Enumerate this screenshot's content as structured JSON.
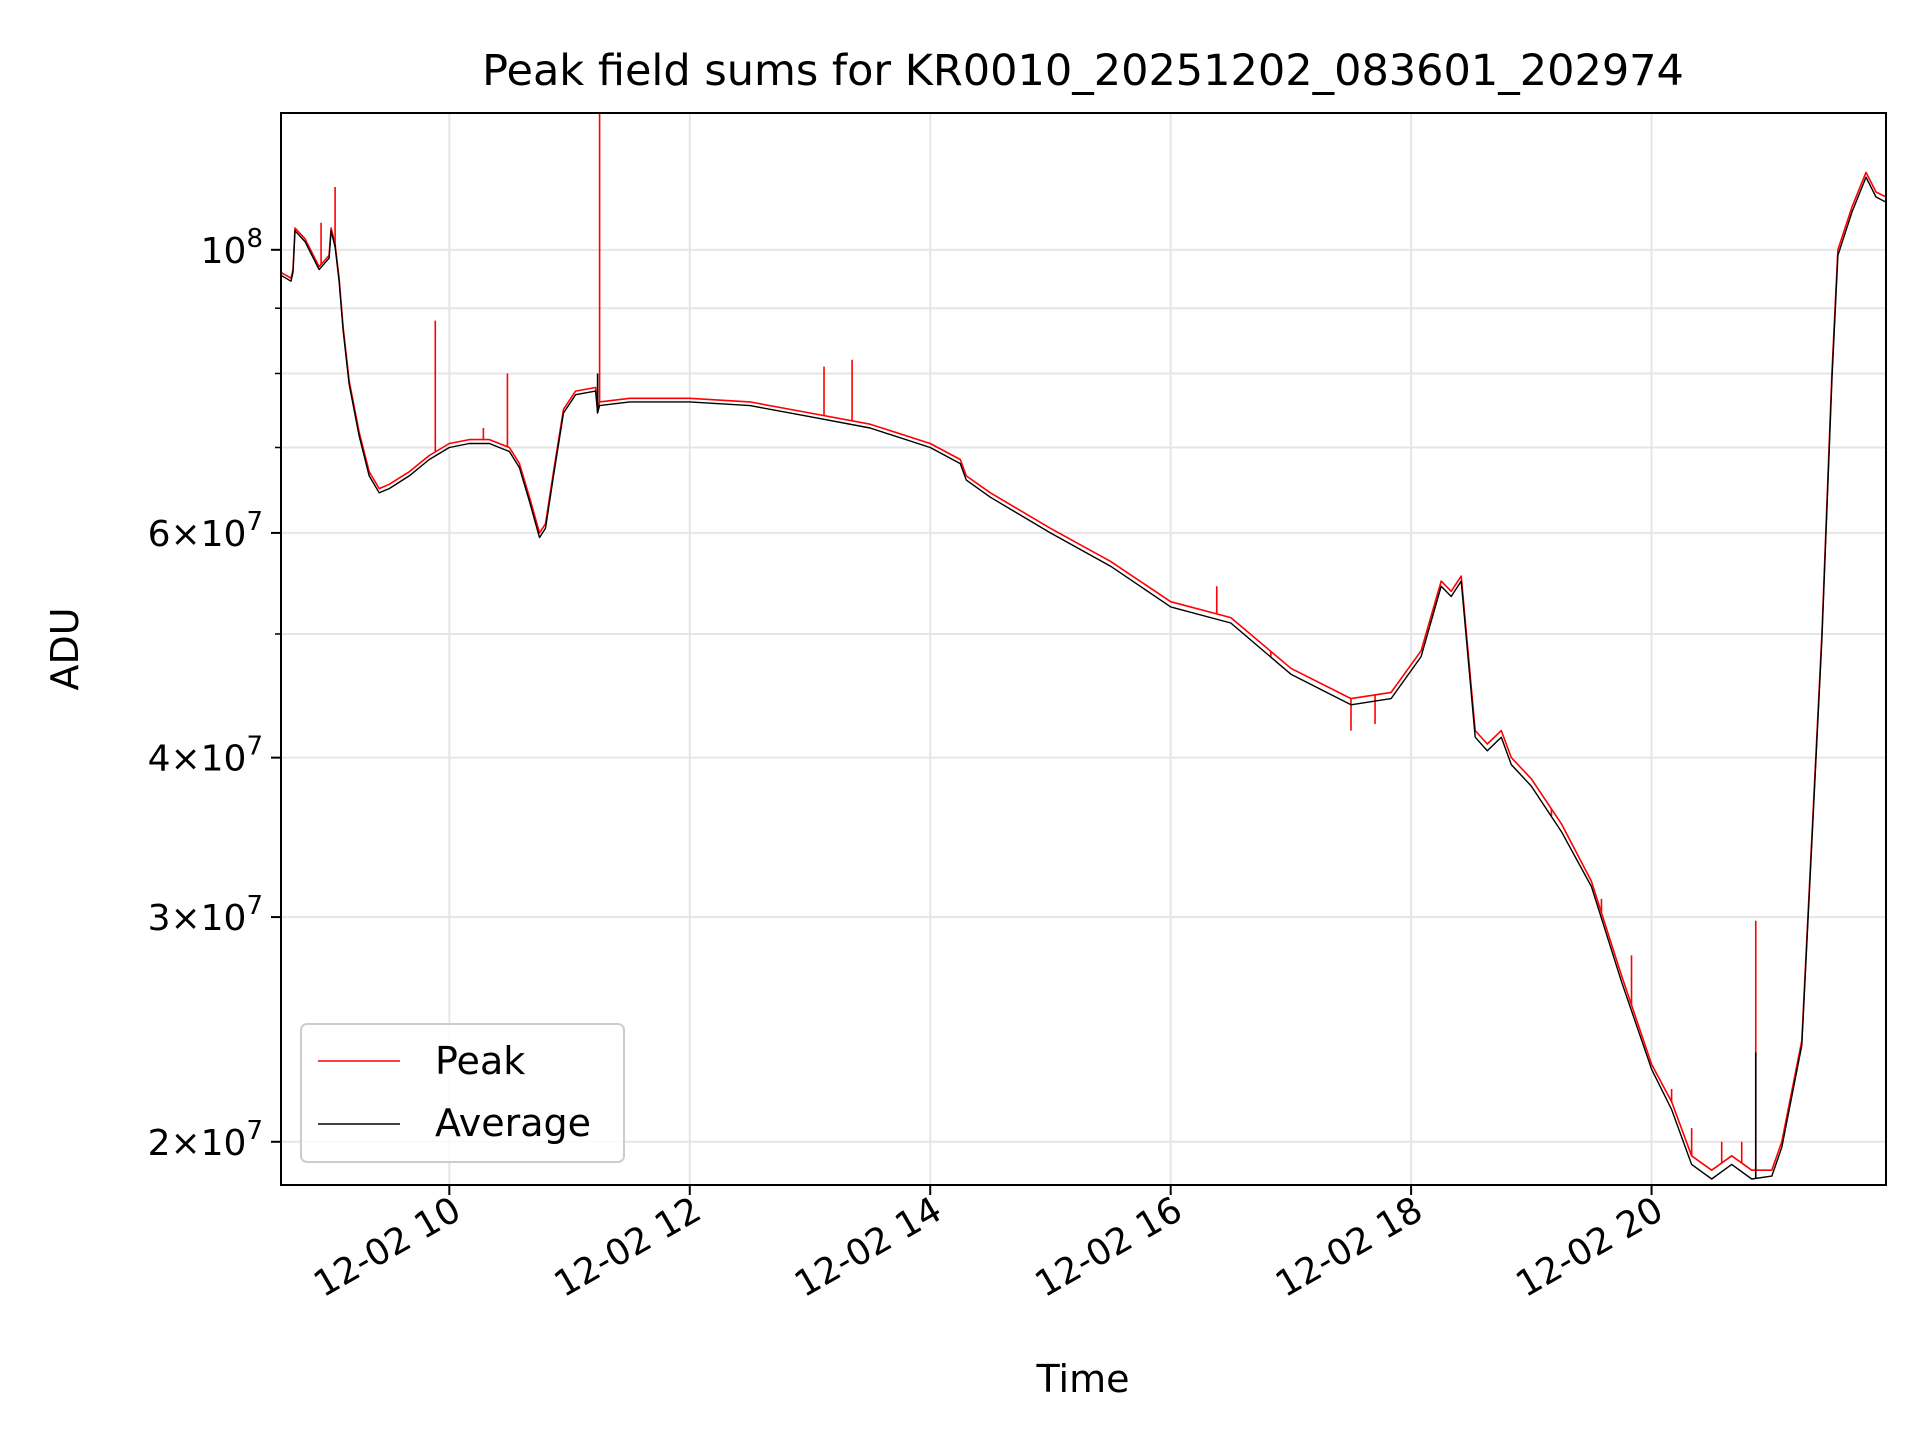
{
  "chart_data": {
    "type": "line",
    "title": "Peak field sums for KR0010_20251202_083601_202974",
    "xlabel": "Time",
    "ylabel": "ADU",
    "yscale": "log",
    "xlim": [
      "2025-12-02 08:36",
      "2025-12-02 21:57"
    ],
    "ylim": [
      18500000,
      128000000
    ],
    "grid": true,
    "legend_position": "lower-left",
    "x_ticks": [
      {
        "x": "2025-12-02 10:00",
        "label": "12-02 10"
      },
      {
        "x": "2025-12-02 12:00",
        "label": "12-02 12"
      },
      {
        "x": "2025-12-02 14:00",
        "label": "12-02 14"
      },
      {
        "x": "2025-12-02 16:00",
        "label": "12-02 16"
      },
      {
        "x": "2025-12-02 18:00",
        "label": "12-02 18"
      },
      {
        "x": "2025-12-02 20:00",
        "label": "12-02 20"
      }
    ],
    "y_ticks": [
      {
        "value": 20000000,
        "mantissa": "2",
        "base": "10",
        "exponent": "7"
      },
      {
        "value": 30000000,
        "mantissa": "3",
        "base": "10",
        "exponent": "7"
      },
      {
        "value": 40000000,
        "mantissa": "4",
        "base": "10",
        "exponent": "7"
      },
      {
        "value": 60000000,
        "mantissa": "6",
        "base": "10",
        "exponent": "7"
      },
      {
        "value": 100000000,
        "mantissa": "",
        "base": "10",
        "exponent": "8"
      }
    ],
    "y_minor_ticks": [
      50000000,
      70000000,
      80000000,
      90000000
    ],
    "series": [
      {
        "name": "Peak",
        "color": "#ff0000",
        "points": [
          [
            "2025-12-02 08:36",
            96000000
          ],
          [
            "2025-12-02 08:41",
            95000000
          ],
          [
            "2025-12-02 08:42",
            96500000
          ],
          [
            "2025-12-02 08:43",
            104000000
          ],
          [
            "2025-12-02 08:48",
            102000000
          ],
          [
            "2025-12-02 08:55",
            97000000
          ],
          [
            "2025-12-02 09:00",
            99000000
          ],
          [
            "2025-12-02 09:01",
            104000000
          ],
          [
            "2025-12-02 09:03",
            101000000
          ],
          [
            "2025-12-02 09:05",
            95000000
          ],
          [
            "2025-12-02 09:07",
            87000000
          ],
          [
            "2025-12-02 09:10",
            79000000
          ],
          [
            "2025-12-02 09:15",
            72000000
          ],
          [
            "2025-12-02 09:20",
            67000000
          ],
          [
            "2025-12-02 09:25",
            65000000
          ],
          [
            "2025-12-02 09:30",
            65500000
          ],
          [
            "2025-12-02 09:40",
            67000000
          ],
          [
            "2025-12-02 09:50",
            69000000
          ],
          [
            "2025-12-02 10:00",
            70500000
          ],
          [
            "2025-12-02 10:10",
            71000000
          ],
          [
            "2025-12-02 10:20",
            71000000
          ],
          [
            "2025-12-02 10:30",
            70000000
          ],
          [
            "2025-12-02 10:35",
            68000000
          ],
          [
            "2025-12-02 10:40",
            64000000
          ],
          [
            "2025-12-02 10:45",
            60000000
          ],
          [
            "2025-12-02 10:48",
            61000000
          ],
          [
            "2025-12-02 10:52",
            67000000
          ],
          [
            "2025-12-02 10:57",
            75000000
          ],
          [
            "2025-12-02 11:03",
            77500000
          ],
          [
            "2025-12-02 11:13",
            78000000
          ],
          [
            "2025-12-02 11:14",
            75000000
          ],
          [
            "2025-12-02 11:15",
            76000000
          ],
          [
            "2025-12-02 11:30",
            76500000
          ],
          [
            "2025-12-02 12:00",
            76500000
          ],
          [
            "2025-12-02 12:30",
            76000000
          ],
          [
            "2025-12-02 13:00",
            74500000
          ],
          [
            "2025-12-02 13:30",
            73000000
          ],
          [
            "2025-12-02 14:00",
            70500000
          ],
          [
            "2025-12-02 14:15",
            68500000
          ],
          [
            "2025-12-02 14:18",
            66500000
          ],
          [
            "2025-12-02 14:30",
            64500000
          ],
          [
            "2025-12-02 15:00",
            60500000
          ],
          [
            "2025-12-02 15:30",
            57000000
          ],
          [
            "2025-12-02 16:00",
            53000000
          ],
          [
            "2025-12-02 16:30",
            51500000
          ],
          [
            "2025-12-02 17:00",
            47000000
          ],
          [
            "2025-12-02 17:30",
            44500000
          ],
          [
            "2025-12-02 17:50",
            45000000
          ],
          [
            "2025-12-02 18:05",
            48500000
          ],
          [
            "2025-12-02 18:15",
            55000000
          ],
          [
            "2025-12-02 18:20",
            54000000
          ],
          [
            "2025-12-02 18:25",
            55500000
          ],
          [
            "2025-12-02 18:32",
            42000000
          ],
          [
            "2025-12-02 18:38",
            41000000
          ],
          [
            "2025-12-02 18:45",
            42000000
          ],
          [
            "2025-12-02 18:50",
            40000000
          ],
          [
            "2025-12-02 19:00",
            38500000
          ],
          [
            "2025-12-02 19:15",
            35500000
          ],
          [
            "2025-12-02 19:30",
            32000000
          ],
          [
            "2025-12-02 19:45",
            27000000
          ],
          [
            "2025-12-02 20:00",
            23000000
          ],
          [
            "2025-12-02 20:10",
            21500000
          ],
          [
            "2025-12-02 20:20",
            19500000
          ],
          [
            "2025-12-02 20:30",
            19000000
          ],
          [
            "2025-12-02 20:40",
            19500000
          ],
          [
            "2025-12-02 20:50",
            19000000
          ],
          [
            "2025-12-02 21:00",
            19000000
          ],
          [
            "2025-12-02 21:05",
            20000000
          ],
          [
            "2025-12-02 21:15",
            24000000
          ],
          [
            "2025-12-02 21:25",
            50000000
          ],
          [
            "2025-12-02 21:30",
            80000000
          ],
          [
            "2025-12-02 21:33",
            100000000
          ],
          [
            "2025-12-02 21:40",
            108000000
          ],
          [
            "2025-12-02 21:47",
            115000000
          ],
          [
            "2025-12-02 21:52",
            111000000
          ],
          [
            "2025-12-02 21:57",
            110000000
          ]
        ],
        "spikes": [
          [
            "2025-12-02 08:56",
            105000000
          ],
          [
            "2025-12-02 09:03",
            112000000
          ],
          [
            "2025-12-02 09:53",
            88000000
          ],
          [
            "2025-12-02 10:17",
            72500000
          ],
          [
            "2025-12-02 10:29",
            80000000
          ],
          [
            "2025-12-02 11:15",
            128000000
          ],
          [
            "2025-12-02 13:07",
            81000000
          ],
          [
            "2025-12-02 13:21",
            82000000
          ],
          [
            "2025-12-02 16:23",
            54500000
          ],
          [
            "2025-12-02 16:50",
            48000000
          ],
          [
            "2025-12-02 17:30",
            42000000
          ],
          [
            "2025-12-02 17:42",
            42500000
          ],
          [
            "2025-12-02 18:50",
            40000000
          ],
          [
            "2025-12-02 19:10",
            36000000
          ],
          [
            "2025-12-02 19:35",
            31000000
          ],
          [
            "2025-12-02 19:50",
            28000000
          ],
          [
            "2025-12-02 20:10",
            22000000
          ],
          [
            "2025-12-02 20:20",
            20500000
          ],
          [
            "2025-12-02 20:35",
            20000000
          ],
          [
            "2025-12-02 20:45",
            20000000
          ],
          [
            "2025-12-02 20:52",
            29800000
          ]
        ]
      },
      {
        "name": "Average",
        "color": "#000000",
        "points": [
          [
            "2025-12-02 08:36",
            95500000
          ],
          [
            "2025-12-02 08:41",
            94500000
          ],
          [
            "2025-12-02 08:42",
            96000000
          ],
          [
            "2025-12-02 08:43",
            103500000
          ],
          [
            "2025-12-02 08:48",
            101500000
          ],
          [
            "2025-12-02 08:55",
            96500000
          ],
          [
            "2025-12-02 09:00",
            98500000
          ],
          [
            "2025-12-02 09:01",
            103500000
          ],
          [
            "2025-12-02 09:03",
            100500000
          ],
          [
            "2025-12-02 09:05",
            94500000
          ],
          [
            "2025-12-02 09:07",
            86500000
          ],
          [
            "2025-12-02 09:10",
            78500000
          ],
          [
            "2025-12-02 09:15",
            71500000
          ],
          [
            "2025-12-02 09:20",
            66500000
          ],
          [
            "2025-12-02 09:25",
            64500000
          ],
          [
            "2025-12-02 09:30",
            65000000
          ],
          [
            "2025-12-02 09:40",
            66500000
          ],
          [
            "2025-12-02 09:50",
            68500000
          ],
          [
            "2025-12-02 10:00",
            70000000
          ],
          [
            "2025-12-02 10:10",
            70500000
          ],
          [
            "2025-12-02 10:20",
            70500000
          ],
          [
            "2025-12-02 10:30",
            69500000
          ],
          [
            "2025-12-02 10:35",
            67500000
          ],
          [
            "2025-12-02 10:40",
            63500000
          ],
          [
            "2025-12-02 10:45",
            59500000
          ],
          [
            "2025-12-02 10:48",
            60500000
          ],
          [
            "2025-12-02 10:52",
            66500000
          ],
          [
            "2025-12-02 10:57",
            74500000
          ],
          [
            "2025-12-02 11:03",
            77000000
          ],
          [
            "2025-12-02 11:13",
            77500000
          ],
          [
            "2025-12-02 11:14",
            74500000
          ],
          [
            "2025-12-02 11:15",
            75500000
          ],
          [
            "2025-12-02 11:30",
            76000000
          ],
          [
            "2025-12-02 12:00",
            76000000
          ],
          [
            "2025-12-02 12:30",
            75500000
          ],
          [
            "2025-12-02 13:00",
            74000000
          ],
          [
            "2025-12-02 13:30",
            72500000
          ],
          [
            "2025-12-02 14:00",
            70000000
          ],
          [
            "2025-12-02 14:15",
            68000000
          ],
          [
            "2025-12-02 14:18",
            66000000
          ],
          [
            "2025-12-02 14:30",
            64000000
          ],
          [
            "2025-12-02 15:00",
            60000000
          ],
          [
            "2025-12-02 15:30",
            56500000
          ],
          [
            "2025-12-02 16:00",
            52500000
          ],
          [
            "2025-12-02 16:30",
            51000000
          ],
          [
            "2025-12-02 17:00",
            46500000
          ],
          [
            "2025-12-02 17:30",
            44000000
          ],
          [
            "2025-12-02 17:50",
            44500000
          ],
          [
            "2025-12-02 18:05",
            48000000
          ],
          [
            "2025-12-02 18:15",
            54500000
          ],
          [
            "2025-12-02 18:20",
            53500000
          ],
          [
            "2025-12-02 18:25",
            55000000
          ],
          [
            "2025-12-02 18:32",
            41500000
          ],
          [
            "2025-12-02 18:38",
            40500000
          ],
          [
            "2025-12-02 18:45",
            41500000
          ],
          [
            "2025-12-02 18:50",
            39500000
          ],
          [
            "2025-12-02 19:00",
            38000000
          ],
          [
            "2025-12-02 19:15",
            35000000
          ],
          [
            "2025-12-02 19:30",
            31700000
          ],
          [
            "2025-12-02 19:45",
            26700000
          ],
          [
            "2025-12-02 20:00",
            22800000
          ],
          [
            "2025-12-02 20:10",
            21200000
          ],
          [
            "2025-12-02 20:20",
            19200000
          ],
          [
            "2025-12-02 20:30",
            18700000
          ],
          [
            "2025-12-02 20:40",
            19200000
          ],
          [
            "2025-12-02 20:50",
            18700000
          ],
          [
            "2025-12-02 21:00",
            18800000
          ],
          [
            "2025-12-02 21:05",
            19800000
          ],
          [
            "2025-12-02 21:15",
            23800000
          ],
          [
            "2025-12-02 21:25",
            49500000
          ],
          [
            "2025-12-02 21:30",
            79000000
          ],
          [
            "2025-12-02 21:33",
            99000000
          ],
          [
            "2025-12-02 21:40",
            107000000
          ],
          [
            "2025-12-02 21:47",
            114000000
          ],
          [
            "2025-12-02 21:52",
            110000000
          ],
          [
            "2025-12-02 21:57",
            109000000
          ]
        ],
        "spikes": [
          [
            "2025-12-02 09:03",
            101000000
          ],
          [
            "2025-12-02 11:14",
            80000000
          ],
          [
            "2025-12-02 20:52",
            23500000
          ]
        ]
      }
    ]
  }
}
